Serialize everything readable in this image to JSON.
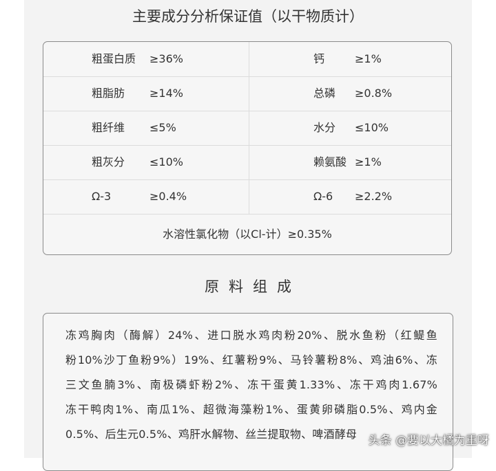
{
  "header": {
    "title": "主要成分分析保证值（以干物质计）"
  },
  "analysis": {
    "rows": [
      [
        "粗蛋白质",
        "≥36%",
        "钙",
        "≥1%"
      ],
      [
        "粗脂肪",
        "≥14%",
        "总磷",
        "≥0.8%"
      ],
      [
        "粗纤维",
        "≤5%",
        "水分",
        "≤10%"
      ],
      [
        "粗灰分",
        "≤10%",
        "赖氨酸",
        "≥1%"
      ],
      [
        "Ω-3",
        "≥0.4%",
        "Ω-6",
        "≥2.2%"
      ]
    ],
    "footer": "水溶性氯化物（以Cl-计）≥0.35%"
  },
  "ingredients": {
    "title": "原料组成",
    "lines": [
      "冻鸡胸肉（酶解）24%、进口脱水鸡肉粉20%、脱水鱼粉（红鳀鱼",
      "粉10%沙丁鱼粉9%）19%、红薯粉9%、马铃薯粉8%、鸡油6%、冻",
      "三文鱼腩3%、南极磷虾粉2%、冻干蛋黄1.33%、冻干鸡肉1.67%",
      "冻干鸭肉1%、南瓜1%、超微海藻粉1%、蛋黄卵磷脂0.5%、鸡内金",
      "0.5%、后生元0.5%、鸡肝水解物、丝兰提取物、啤酒酵母"
    ]
  },
  "watermark": "头条 @要以大橘为重呀"
}
